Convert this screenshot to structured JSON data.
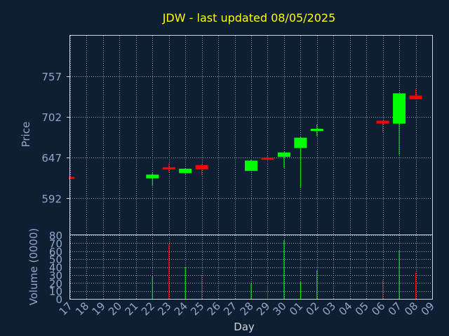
{
  "colors": {
    "background": "#0f1f33",
    "title": "#ffff00",
    "axis_text": "#8fa8c8",
    "grid": "#9aa4b0",
    "up": "#00ff00",
    "down": "#ff0000",
    "frame": "#d0d4d8"
  },
  "chart_data": {
    "type": "candlestick",
    "title": "JDW - last updated 08/05/2025",
    "xlabel": "Day",
    "ylabel": "Price",
    "volume_label": "Volume (0000)",
    "grid": true,
    "days": [
      "17",
      "18",
      "19",
      "20",
      "21",
      "22",
      "23",
      "24",
      "25",
      "26",
      "27",
      "28",
      "29",
      "30",
      "01",
      "02",
      "03",
      "04",
      "05",
      "06",
      "07",
      "08",
      "09"
    ],
    "price_ticks": [
      592,
      647,
      702,
      757
    ],
    "price_ylim": [
      543,
      812
    ],
    "volume_ticks": [
      0,
      10,
      20,
      30,
      40,
      50,
      60,
      70,
      80
    ],
    "volume_ylim": [
      0,
      80
    ],
    "candles": [
      {
        "day": "17",
        "open": 621,
        "close": 619,
        "high": 621,
        "low": 619,
        "volume": 0
      },
      {
        "day": "22",
        "open": 619,
        "close": 624,
        "high": 626,
        "low": 609,
        "volume": 29
      },
      {
        "day": "23",
        "open": 634,
        "close": 631,
        "high": 639,
        "low": 627,
        "volume": 69
      },
      {
        "day": "24",
        "open": 626,
        "close": 632,
        "high": 633,
        "low": 625,
        "volume": 40
      },
      {
        "day": "25",
        "open": 637,
        "close": 631,
        "high": 638,
        "low": 623,
        "volume": 30
      },
      {
        "day": "28",
        "open": 629,
        "close": 643,
        "high": 644,
        "low": 629,
        "volume": 20
      },
      {
        "day": "29",
        "open": 647,
        "close": 646,
        "high": 649,
        "low": 640,
        "volume": 17
      },
      {
        "day": "30",
        "open": 648,
        "close": 654,
        "high": 655,
        "low": 633,
        "volume": 74
      },
      {
        "day": "01",
        "open": 660,
        "close": 674,
        "high": 675,
        "low": 606,
        "volume": 21
      },
      {
        "day": "02",
        "open": 683,
        "close": 686,
        "high": 692,
        "low": 676,
        "volume": 36
      },
      {
        "day": "06",
        "open": 697,
        "close": 693,
        "high": 697,
        "low": 681,
        "volume": 24
      },
      {
        "day": "07",
        "open": 693,
        "close": 734,
        "high": 734,
        "low": 651,
        "volume": 61
      },
      {
        "day": "08",
        "open": 731,
        "close": 726,
        "high": 740,
        "low": 726,
        "volume": 33
      }
    ]
  }
}
